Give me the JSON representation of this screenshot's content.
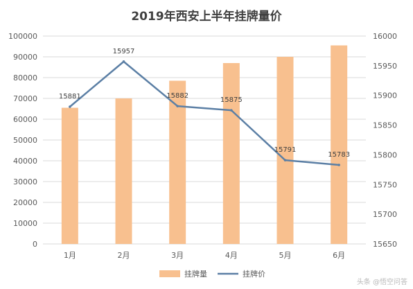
{
  "chart_data": {
    "type": "bar",
    "title": "2019年西安上半年挂牌量价",
    "categories": [
      "1月",
      "2月",
      "3月",
      "4月",
      "5月",
      "6月"
    ],
    "series": [
      {
        "name": "挂牌量",
        "type": "bar",
        "axis": "left",
        "color": "#F8C08F",
        "values": [
          65500,
          70000,
          78500,
          87000,
          90000,
          95500
        ]
      },
      {
        "name": "挂牌价",
        "type": "line",
        "axis": "right",
        "color": "#5B7FA5",
        "values": [
          15881,
          15957,
          15882,
          15875,
          15791,
          15783
        ]
      }
    ],
    "data_labels": [
      "15881",
      "15957",
      "15882",
      "15875",
      "15791",
      "15783"
    ],
    "y_left": {
      "min": 0,
      "max": 100000,
      "step": 10000,
      "ticks": [
        "0",
        "10000",
        "20000",
        "30000",
        "40000",
        "50000",
        "60000",
        "70000",
        "80000",
        "90000",
        "100000"
      ]
    },
    "y_right": {
      "min": 15650,
      "max": 16000,
      "step": 50,
      "ticks": [
        "15650",
        "15700",
        "15750",
        "15800",
        "15850",
        "15900",
        "15950",
        "16000"
      ]
    },
    "legend_position": "bottom",
    "grid": true
  },
  "watermark": "头条 @悟空问答"
}
